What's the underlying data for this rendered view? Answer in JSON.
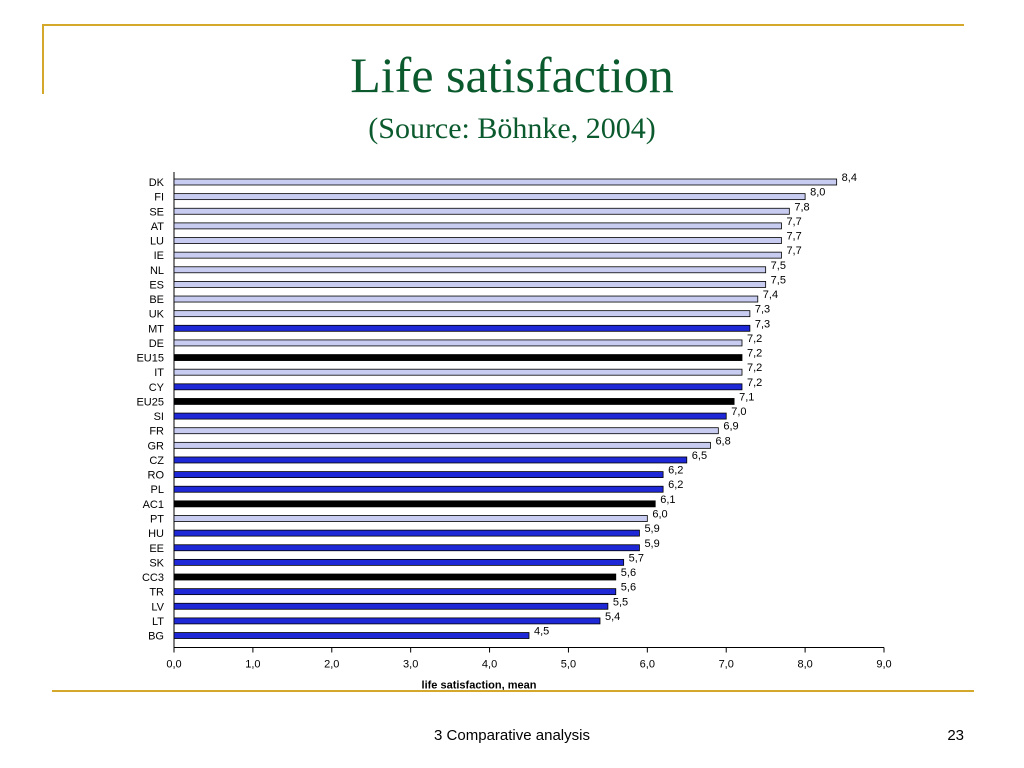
{
  "slide": {
    "title": "Life satisfaction",
    "subtitle": "(Source: Böhnke, 2004)",
    "footer": "3 Comparative analysis",
    "page_number": "23"
  },
  "colors": {
    "title": "#0b5a2e",
    "accent_line": "#d4a82a",
    "bar_eu15": "#c8ccf0",
    "bar_new": "#1f28d6",
    "bar_aggregate": "#000000"
  },
  "chart_data": {
    "type": "bar",
    "orientation": "horizontal",
    "xlabel": "life satisfaction, mean",
    "ylabel": "",
    "xlim": [
      0,
      9
    ],
    "x_ticks": [
      "0,0",
      "1,0",
      "2,0",
      "3,0",
      "4,0",
      "5,0",
      "6,0",
      "7,0",
      "8,0",
      "9,0"
    ],
    "grid": false,
    "categories": [
      "DK",
      "FI",
      "SE",
      "AT",
      "LU",
      "IE",
      "NL",
      "ES",
      "BE",
      "UK",
      "MT",
      "DE",
      "EU15",
      "IT",
      "CY",
      "EU25",
      "SI",
      "FR",
      "GR",
      "CZ",
      "RO",
      "PL",
      "AC1",
      "PT",
      "HU",
      "EE",
      "SK",
      "CC3",
      "TR",
      "LV",
      "LT",
      "BG"
    ],
    "values": [
      8.4,
      8.0,
      7.8,
      7.7,
      7.7,
      7.7,
      7.5,
      7.5,
      7.4,
      7.3,
      7.3,
      7.2,
      7.2,
      7.2,
      7.2,
      7.1,
      7.0,
      6.9,
      6.8,
      6.5,
      6.2,
      6.2,
      6.1,
      6.0,
      5.9,
      5.9,
      5.7,
      5.6,
      5.6,
      5.5,
      5.4,
      4.5
    ],
    "value_labels": [
      "8,4",
      "8,0",
      "7,8",
      "7,7",
      "7,7",
      "7,7",
      "7,5",
      "7,5",
      "7,4",
      "7,3",
      "7,3",
      "7,2",
      "7,2",
      "7,2",
      "7,2",
      "7,1",
      "7,0",
      "6,9",
      "6,8",
      "6,5",
      "6,2",
      "6,2",
      "6,1",
      "6,0",
      "5,9",
      "5,9",
      "5,7",
      "5,6",
      "5,6",
      "5,5",
      "5,4",
      "4,5"
    ],
    "bar_groups": [
      "eu15",
      "eu15",
      "eu15",
      "eu15",
      "eu15",
      "eu15",
      "eu15",
      "eu15",
      "eu15",
      "eu15",
      "new",
      "eu15",
      "aggregate",
      "eu15",
      "new",
      "aggregate",
      "new",
      "eu15",
      "eu15",
      "new",
      "new",
      "new",
      "aggregate",
      "eu15",
      "new",
      "new",
      "new",
      "aggregate",
      "new",
      "new",
      "new",
      "new"
    ]
  }
}
